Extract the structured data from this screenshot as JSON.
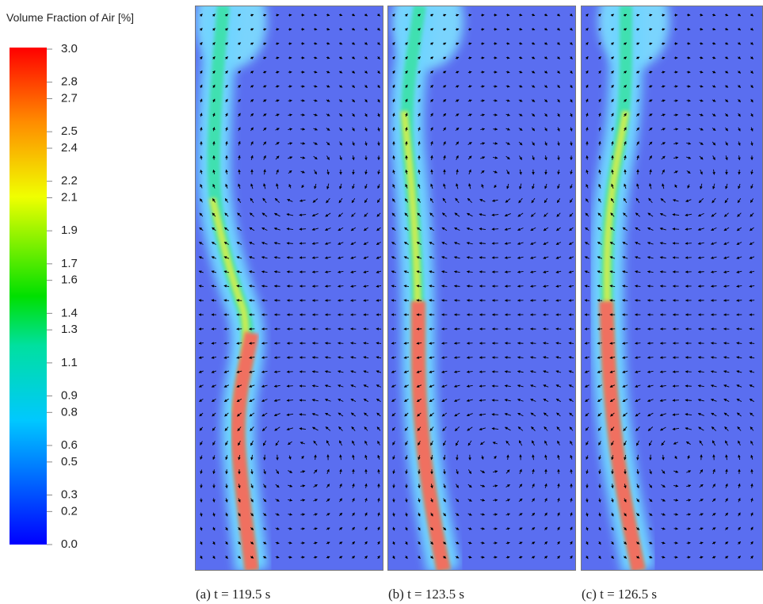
{
  "chart_data": {
    "type": "contour",
    "colorbar": {
      "label": "Volume Fraction of Air [%]",
      "lim": [
        0,
        3
      ],
      "ticks": [
        {
          "value": 3,
          "label": "3.0"
        },
        2.8,
        2.7,
        2.5,
        2.4,
        2.2,
        2.1,
        1.9,
        1.7,
        1.6,
        1.4,
        1.3,
        1.1,
        0.9,
        0.8,
        0.6,
        0.5,
        0.3,
        0.2,
        {
          "value": 0,
          "label": "0.0"
        }
      ]
    },
    "panels": [
      {
        "caption": "(a) t = 119.5 s"
      },
      {
        "caption": "(b) t = 123.5 s"
      },
      {
        "caption": "(c) t = 126.5 s"
      }
    ]
  }
}
